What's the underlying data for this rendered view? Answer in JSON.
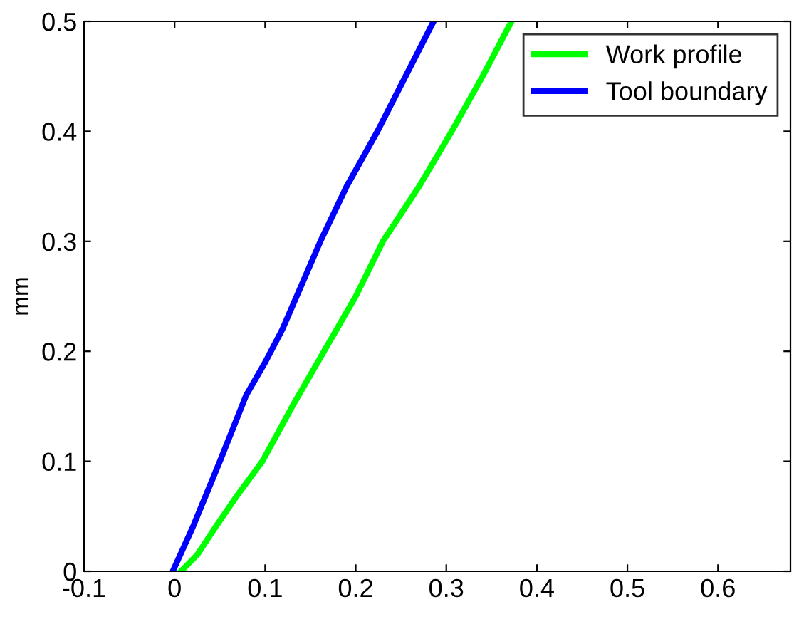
{
  "chart_data": {
    "type": "line",
    "ylabel": "mm",
    "series": [
      {
        "name": "Work profile",
        "color": "#00ff00",
        "x": [
          0.007,
          0.025,
          0.045,
          0.07,
          0.097,
          0.13,
          0.165,
          0.2,
          0.23,
          0.27,
          0.306,
          0.34,
          0.372
        ],
        "values": [
          0,
          0.015,
          0.04,
          0.07,
          0.1,
          0.15,
          0.2,
          0.25,
          0.3,
          0.35,
          0.4,
          0.45,
          0.5
        ]
      },
      {
        "name": "Tool boundary",
        "color": "#0000ff",
        "x": [
          -0.002,
          0.02,
          0.05,
          0.079,
          0.1,
          0.119,
          0.14,
          0.161,
          0.19,
          0.224,
          0.255,
          0.286
        ],
        "values": [
          0,
          0.04,
          0.1,
          0.16,
          0.19,
          0.22,
          0.26,
          0.3,
          0.35,
          0.4,
          0.45,
          0.5
        ]
      }
    ],
    "xlim": [
      -0.1,
      0.68
    ],
    "ylim": [
      0,
      0.5
    ],
    "xticks": [
      -0.1,
      0,
      0.1,
      0.2,
      0.3,
      0.4,
      0.5,
      0.6
    ],
    "yticks": [
      0,
      0.1,
      0.2,
      0.3,
      0.4,
      0.5
    ],
    "grid": false,
    "legend": "top right",
    "line_style": "solid",
    "marker": "none"
  }
}
